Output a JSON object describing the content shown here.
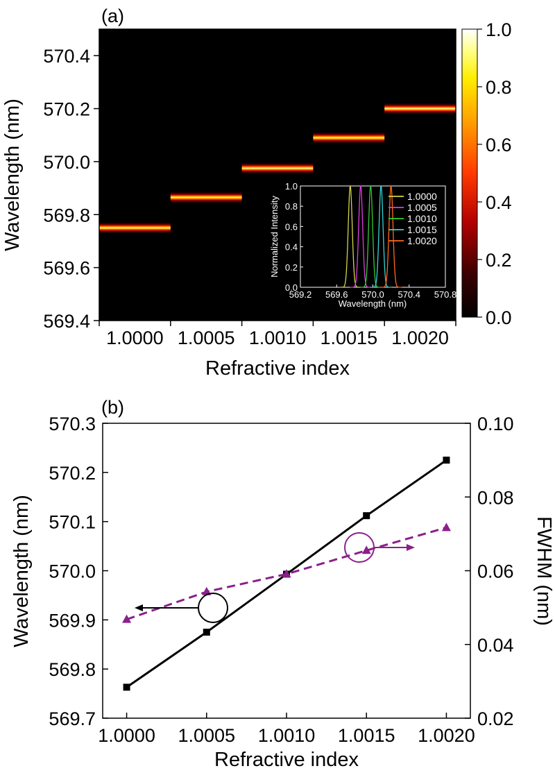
{
  "figure": {
    "background": "#ffffff"
  },
  "chart_data": [
    {
      "panel_label": "(a)",
      "type": "heatmap",
      "xlabel": "Refractive index",
      "ylabel": "Wavelength (nm)",
      "categories": [
        "1.0000",
        "1.0005",
        "1.0010",
        "1.0015",
        "1.0020"
      ],
      "yticks": [
        "569.4",
        "569.6",
        "569.8",
        "570.0",
        "570.2",
        "570.4"
      ],
      "ylim": [
        569.4,
        570.5
      ],
      "colorbar": {
        "ticks": [
          "0.0",
          "0.2",
          "0.4",
          "0.6",
          "0.8",
          "1.0"
        ],
        "range": [
          0,
          1
        ],
        "colormap": "hot (black-red-orange-yellow-white)"
      },
      "peak_centers_nm": [
        569.75,
        569.865,
        569.975,
        570.09,
        570.2
      ],
      "peak_halfwidth_nm": 0.022,
      "inset": {
        "type": "line",
        "xlabel": "Wavelength (nm)",
        "ylabel": "Normalized Intensity",
        "xticks": [
          "569.2",
          "569.6",
          "570.0",
          "570.4",
          "570.8"
        ],
        "yticks": [
          "0.0",
          "0.2",
          "0.4",
          "0.6",
          "0.8",
          "1.0"
        ],
        "xlim": [
          569.2,
          570.8
        ],
        "ylim": [
          0,
          1
        ],
        "series": [
          {
            "name": "1.0000",
            "peak_nm": 569.75,
            "color": "#d6d64a"
          },
          {
            "name": "1.0005",
            "peak_nm": 569.865,
            "color": "#e23de2"
          },
          {
            "name": "1.0010",
            "peak_nm": 569.975,
            "color": "#33cc33"
          },
          {
            "name": "1.0015",
            "peak_nm": 570.09,
            "color": "#36d6d6"
          },
          {
            "name": "1.0020",
            "peak_nm": 570.2,
            "color": "#ff6a1a"
          }
        ],
        "legend_position": "top-right"
      }
    },
    {
      "panel_label": "(b)",
      "type": "line",
      "xlabel": "Refractive index",
      "ylabel": "Wavelength (nm)",
      "y2label": "FWHM (nm)",
      "x": [
        1.0,
        1.0005,
        1.001,
        1.0015,
        1.002
      ],
      "xticks": [
        "1.0000",
        "1.0005",
        "1.0010",
        "1.0015",
        "1.0020"
      ],
      "xlim": [
        0.99985,
        1.00215
      ],
      "yticks": [
        "569.7",
        "569.8",
        "569.9",
        "570.0",
        "570.1",
        "570.2",
        "570.3"
      ],
      "ylim": [
        569.7,
        570.3
      ],
      "y2ticks": [
        "0.02",
        "0.04",
        "0.06",
        "0.08",
        "0.10"
      ],
      "y2lim": [
        0.02,
        0.1
      ],
      "series": [
        {
          "axis": "left",
          "values": [
            569.763,
            569.875,
            569.993,
            570.112,
            570.225
          ],
          "color": "#000000",
          "marker": "square",
          "line": "solid"
        },
        {
          "axis": "right",
          "values": [
            0.0468,
            0.0543,
            0.0591,
            0.0655,
            0.0717
          ],
          "color": "#8b1f8b",
          "marker": "triangle",
          "line": "dashed"
        }
      ]
    }
  ]
}
